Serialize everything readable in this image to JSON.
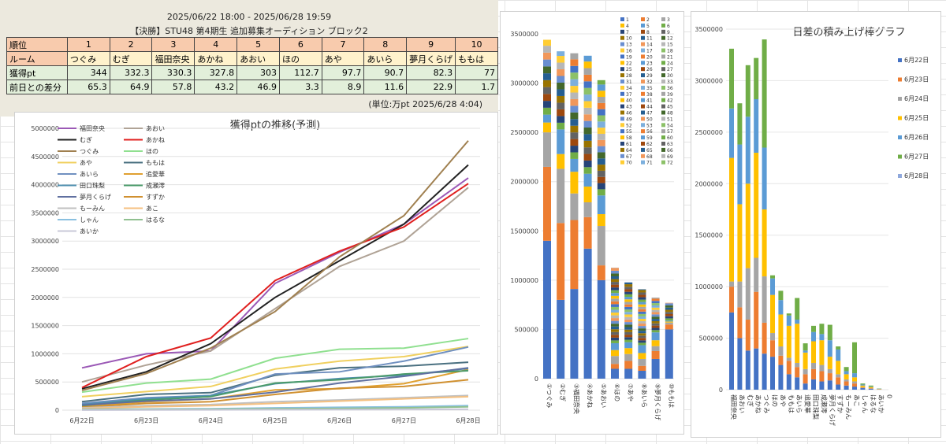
{
  "header": {
    "date_range": "2025/06/22 18:00 - 2025/06/28 19:59",
    "title": "【決勝】STU48 第4期生 追加募集オーディション ブロック2",
    "unit": "(単位:万pt 2025/6/28 4:04)"
  },
  "rank_table": {
    "row_labels": [
      "順位",
      "ルーム",
      "獲得pt",
      "前日との差分"
    ],
    "ranks": [
      "1",
      "2",
      "3",
      "4",
      "5",
      "6",
      "7",
      "8",
      "9",
      "10"
    ],
    "rooms": [
      "つぐみ",
      "むぎ",
      "福田奈央",
      "あかね",
      "あおい",
      "ほの",
      "あや",
      "あいら",
      "夢月くらげ",
      "ももは"
    ],
    "points": [
      "344",
      "332.3",
      "330.3",
      "327.8",
      "303",
      "112.7",
      "97.7",
      "90.7",
      "82.3",
      "77"
    ],
    "diffs": [
      "65.3",
      "64.9",
      "57.8",
      "43.2",
      "46.9",
      "3.3",
      "8.9",
      "11.6",
      "22.9",
      "1.7"
    ]
  },
  "colors": {
    "blue": "#4472c4",
    "orange": "#ed7d31",
    "gray": "#a5a5a5",
    "yellow": "#ffc000",
    "lightblue": "#5b9bd5",
    "green": "#70ad47",
    "periwinkle": "#8fa8dc"
  },
  "chart_data": [
    {
      "type": "line",
      "title": "獲得ptの推移(予測)",
      "x": [
        "6月22日",
        "6月23日",
        "6月24日",
        "6月25日",
        "6月26日",
        "6月27日",
        "6月28日"
      ],
      "ylim": [
        0,
        5000000
      ],
      "yticks": [
        0,
        500000,
        1000000,
        1500000,
        2000000,
        2500000,
        3000000,
        3500000,
        4000000,
        4500000,
        5000000
      ],
      "legend_position": "top-left",
      "series": [
        {
          "name": "福田奈央",
          "color": "#9b59b6",
          "values": [
            750000,
            1000000,
            1050000,
            2250000,
            2800000,
            3300000,
            4120000
          ]
        },
        {
          "name": "あおい",
          "color": "#b0a396",
          "values": [
            500000,
            800000,
            1050000,
            1800000,
            2550000,
            3000000,
            3950000
          ]
        },
        {
          "name": "むぎ",
          "color": "#222222",
          "values": [
            380000,
            680000,
            1180000,
            2000000,
            2650000,
            3300000,
            4350000
          ]
        },
        {
          "name": "あかね",
          "color": "#e0201f",
          "values": [
            400000,
            950000,
            1280000,
            2300000,
            2820000,
            3250000,
            4020000
          ]
        },
        {
          "name": "つぐみ",
          "color": "#a08050",
          "values": [
            350000,
            650000,
            1100000,
            1750000,
            2720000,
            3450000,
            4780000
          ]
        },
        {
          "name": "ほの",
          "color": "#90e090",
          "values": [
            320000,
            480000,
            550000,
            920000,
            1080000,
            1100000,
            1270000
          ]
        },
        {
          "name": "あや",
          "color": "#f0d060",
          "values": [
            240000,
            330000,
            420000,
            730000,
            870000,
            950000,
            1130000
          ]
        },
        {
          "name": "ももは",
          "color": "#4a7080",
          "values": [
            150000,
            280000,
            310000,
            620000,
            750000,
            780000,
            850000
          ]
        },
        {
          "name": "あいら",
          "color": "#7090c0",
          "values": [
            120000,
            220000,
            260000,
            640000,
            680000,
            870000,
            1120000
          ]
        },
        {
          "name": "追愛華",
          "color": "#e0a030",
          "values": [
            60000,
            150000,
            200000,
            360000,
            380000,
            470000,
            720000
          ]
        },
        {
          "name": "田口珠梨",
          "color": "#5090b0",
          "values": [
            100000,
            200000,
            260000,
            470000,
            560000,
            620000,
            740000
          ]
        },
        {
          "name": "成瀬澪",
          "color": "#4a9a6a",
          "values": [
            80000,
            180000,
            240000,
            480000,
            540000,
            640000,
            700000
          ]
        },
        {
          "name": "夢月くらげ",
          "color": "#6070a0",
          "values": [
            90000,
            160000,
            200000,
            320000,
            480000,
            600000,
            750000
          ]
        },
        {
          "name": "すずか",
          "color": "#d09030",
          "values": [
            50000,
            120000,
            150000,
            280000,
            390000,
            420000,
            540000
          ]
        },
        {
          "name": "もーみん",
          "color": "#c0c0c0",
          "values": [
            40000,
            80000,
            100000,
            150000,
            180000,
            220000,
            260000
          ]
        },
        {
          "name": "あこ",
          "color": "#f5c080",
          "values": [
            30000,
            60000,
            80000,
            120000,
            160000,
            200000,
            240000
          ]
        },
        {
          "name": "しゃん",
          "color": "#8ac0e0",
          "values": [
            15000,
            20000,
            25000,
            40000,
            50000,
            60000,
            80000
          ]
        },
        {
          "name": "はるな",
          "color": "#90c090",
          "values": [
            8000,
            12000,
            15000,
            25000,
            30000,
            40000,
            60000
          ]
        },
        {
          "name": "あいか",
          "color": "#c8c8d8",
          "values": [
            2000,
            4000,
            6000,
            8000,
            10000,
            12000,
            15000
          ]
        }
      ]
    },
    {
      "type": "bar",
      "stacked": true,
      "categories": [
        "①つぐみ",
        "②むぎ",
        "③福田奈央",
        "④あかね",
        "⑤あおい",
        "⑥ほの",
        "⑦あや",
        "⑧あいら",
        "⑨夢月くらげ",
        "⑩ももは"
      ],
      "totals": [
        3440000,
        3323000,
        3303000,
        3278000,
        3030000,
        1127000,
        977000,
        907000,
        823000,
        770000
      ],
      "ylim": [
        0,
        3500000
      ],
      "yticks": [
        0,
        500000,
        1000000,
        1500000,
        2000000,
        2500000,
        3000000,
        3500000
      ],
      "legend": [
        "1",
        "2",
        "3",
        "4",
        "5",
        "6",
        "7",
        "8",
        "9",
        "10",
        "11",
        "12",
        "13",
        "14",
        "15",
        "16",
        "17",
        "18",
        "19",
        "20",
        "21",
        "22",
        "23",
        "24",
        "25",
        "26",
        "27",
        "28",
        "29",
        "30",
        "31",
        "32",
        "33",
        "34",
        "35",
        "36",
        "37",
        "38",
        "39",
        "40",
        "41",
        "42",
        "43",
        "44",
        "45",
        "46",
        "47",
        "48",
        "49",
        "50",
        "51",
        "52",
        "53",
        "54",
        "55",
        "56",
        "57",
        "58",
        "59",
        "60",
        "61",
        "62",
        "63",
        "64",
        "65",
        "66",
        "67",
        "68",
        "69",
        "70",
        "71",
        "72"
      ],
      "segments_by_series": [
        {
          "name": "1",
          "values": [
            1400000,
            800000,
            910000,
            1320000,
            1000000,
            100000,
            100000,
            80000,
            200000,
            500000
          ]
        },
        {
          "name": "2",
          "values": [
            750000,
            780000,
            700000,
            320000,
            150000,
            50000,
            80000,
            50000,
            80000,
            50000
          ]
        },
        {
          "name": "3",
          "values": [
            350000,
            550000,
            270000,
            150000,
            400000,
            80000,
            70000,
            70000,
            50000,
            20000
          ]
        },
        {
          "name": "4",
          "values": [
            100000,
            150000,
            220000,
            160000,
            120000,
            60000,
            60000,
            60000,
            60000,
            10000
          ]
        },
        {
          "name": "5",
          "values": [
            80000,
            250000,
            130000,
            130000,
            190000,
            70000,
            60000,
            80000,
            80000,
            10000
          ]
        }
      ],
      "legend_position": "right"
    },
    {
      "type": "bar",
      "stacked": true,
      "title": "日差の積み上げ棒グラフ",
      "categories": [
        "福田奈央",
        "あおい",
        "むぎ",
        "あかね",
        "つぐみ",
        "ほの",
        "あや",
        "ももは",
        "あいら",
        "追愛華",
        "田口珠梨",
        "成瀬澪",
        "夢月くらげ",
        "すずか",
        "もーみん",
        "あこ",
        "しゃん",
        "はるな",
        "あいか",
        "0"
      ],
      "ylim": [
        0,
        3500000
      ],
      "yticks": [
        0,
        500000,
        1000000,
        1500000,
        2000000,
        2500000,
        3000000,
        3500000
      ],
      "legend_position": "right",
      "series": [
        {
          "name": "6月22日",
          "color": "#4472c4",
          "values": [
            750000,
            500000,
            380000,
            400000,
            350000,
            320000,
            240000,
            150000,
            120000,
            60000,
            100000,
            80000,
            90000,
            50000,
            40000,
            30000,
            15000,
            8000,
            2000,
            0
          ]
        },
        {
          "name": "6月23日",
          "color": "#ed7d31",
          "values": [
            250000,
            300000,
            300000,
            550000,
            300000,
            160000,
            90000,
            130000,
            100000,
            90000,
            100000,
            100000,
            70000,
            70000,
            40000,
            30000,
            5000,
            4000,
            2000,
            0
          ]
        },
        {
          "name": "6月24日",
          "color": "#a5a5a5",
          "values": [
            50000,
            250000,
            500000,
            330000,
            450000,
            70000,
            90000,
            30000,
            40000,
            50000,
            60000,
            60000,
            40000,
            30000,
            20000,
            20000,
            5000,
            3000,
            2000,
            0
          ]
        },
        {
          "name": "6月25日",
          "color": "#ffc000",
          "values": [
            1200000,
            750000,
            820000,
            1020000,
            650000,
            370000,
            310000,
            310000,
            380000,
            160000,
            210000,
            240000,
            120000,
            130000,
            50000,
            40000,
            15000,
            10000,
            2000,
            0
          ]
        },
        {
          "name": "6月26日",
          "color": "#5b9bd5",
          "values": [
            480000,
            580000,
            650000,
            520000,
            600000,
            160000,
            140000,
            100000,
            40000,
            20000,
            90000,
            60000,
            160000,
            110000,
            30000,
            40000,
            10000,
            5000,
            2000,
            0
          ]
        },
        {
          "name": "6月27日",
          "color": "#70ad47",
          "values": [
            580000,
            400000,
            500000,
            400000,
            1050000,
            30000,
            90000,
            20000,
            210000,
            70000,
            60000,
            100000,
            150000,
            30000,
            40000,
            300000,
            10000,
            10000,
            2000,
            0
          ]
        },
        {
          "name": "6月28日",
          "color": "#8fa8dc",
          "values": [
            0,
            0,
            0,
            0,
            0,
            0,
            0,
            0,
            0,
            0,
            0,
            0,
            0,
            0,
            0,
            0,
            0,
            0,
            0,
            0
          ]
        }
      ]
    }
  ]
}
